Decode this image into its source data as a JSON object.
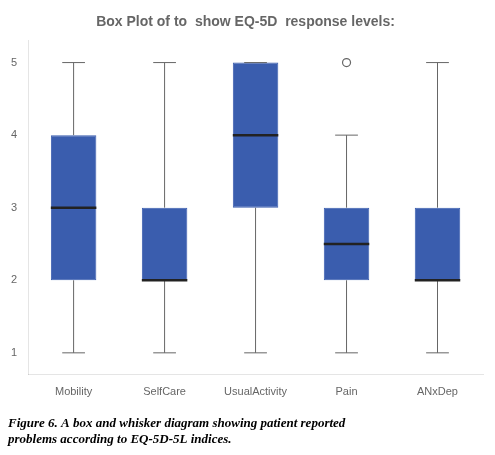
{
  "chart_data": {
    "type": "box",
    "title": "Box Plot of to  show EQ-5D  response levels:",
    "caption": [
      "Figure 6. A box and whisker diagram showing patient reported",
      "problems according to EQ-5D-5L indices."
    ],
    "categories": [
      "Mobility",
      "SelfCare",
      "UsualActivity",
      "Pain",
      "ANxDep"
    ],
    "boxes": [
      {
        "q1": 2.0,
        "median": 3.0,
        "q3": 4.0,
        "whislo": 1.0,
        "whishi": 5.0,
        "fliers": []
      },
      {
        "q1": 2.0,
        "median": 2.0,
        "q3": 3.0,
        "whislo": 1.0,
        "whishi": 5.0,
        "fliers": []
      },
      {
        "q1": 3.0,
        "median": 4.0,
        "q3": 5.0,
        "whislo": 1.0,
        "whishi": 5.0,
        "fliers": []
      },
      {
        "q1": 2.0,
        "median": 2.5,
        "q3": 3.0,
        "whislo": 1.0,
        "whishi": 4.0,
        "fliers": [
          5.0
        ]
      },
      {
        "q1": 2.0,
        "median": 2.0,
        "q3": 3.0,
        "whislo": 1.0,
        "whishi": 5.0,
        "fliers": []
      }
    ],
    "color": "#3A5DAE",
    "ylim": [
      0.7,
      5.3
    ],
    "yticks": [
      1,
      2,
      3,
      4,
      5
    ],
    "grid": false
  }
}
